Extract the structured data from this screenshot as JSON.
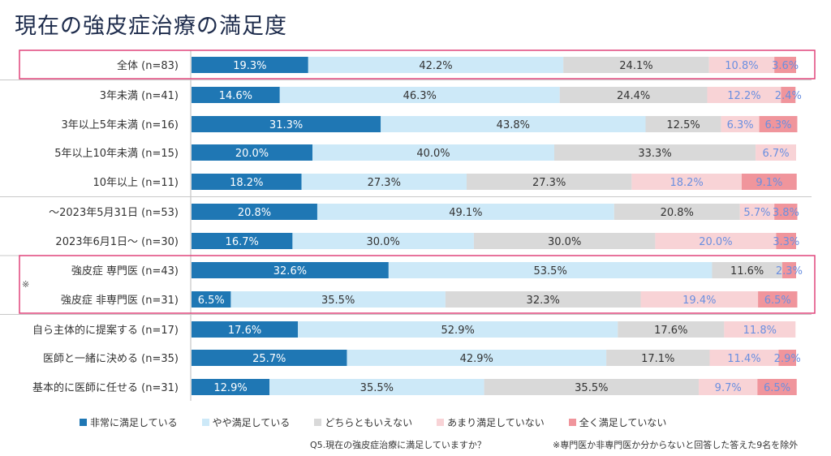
{
  "title": "現在の強皮症治療の満足度",
  "question": "Q5.現在の強皮症治療に満足していますか？",
  "footnote": "※専門医か非専門医か分からないと回答した答えた9名を除外",
  "note_mark": "※",
  "colors": {
    "series": [
      "#1f77b4",
      "#cde9f8",
      "#d9d9d9",
      "#f8d3d6",
      "#f0959c"
    ],
    "highlight_box": "#e0457b",
    "separator": "#c8c8c8",
    "label_dark": "#333333",
    "label_blue": "#6a8fe0",
    "label_white": "#ffffff"
  },
  "chart_data": {
    "type": "bar",
    "orientation": "horizontal",
    "stacked": true,
    "percent": true,
    "xlim": [
      0,
      100
    ],
    "categories": [
      "全体 (n=83)",
      "3年未満 (n=41)",
      "3年以上5年未満 (n=16)",
      "5年以上10年未満 (n=15)",
      "10年以上 (n=11)",
      "～2023年5月31日 (n=53)",
      "2023年6月1日～ (n=30)",
      "強皮症 専門医 (n=43)",
      "強皮症 非専門医 (n=31)",
      "自ら主体的に提案する (n=17)",
      "医師と一緒に決める (n=35)",
      "基本的に医師に任せる (n=31)"
    ],
    "series": [
      {
        "name": "非常に満足している",
        "values": [
          19.3,
          14.6,
          31.3,
          20.0,
          18.2,
          20.8,
          16.7,
          32.6,
          6.5,
          17.6,
          25.7,
          12.9
        ]
      },
      {
        "name": "やや満足している",
        "values": [
          42.2,
          46.3,
          43.8,
          40.0,
          27.3,
          49.1,
          30.0,
          53.5,
          35.5,
          52.9,
          42.9,
          35.5
        ]
      },
      {
        "name": "どちらともいえない",
        "values": [
          24.1,
          24.4,
          12.5,
          33.3,
          27.3,
          20.8,
          30.0,
          11.6,
          32.3,
          17.6,
          17.1,
          35.5
        ]
      },
      {
        "name": "あまり満足していない",
        "values": [
          10.8,
          12.2,
          6.3,
          6.7,
          18.2,
          5.7,
          20.0,
          0,
          19.4,
          11.8,
          11.4,
          9.7
        ]
      },
      {
        "name": "全く満足していない",
        "values": [
          3.6,
          2.4,
          6.3,
          0,
          9.1,
          3.8,
          3.3,
          2.3,
          6.5,
          0,
          2.9,
          6.5
        ]
      }
    ],
    "legend_position": "bottom",
    "highlight_groups": [
      [
        0
      ],
      [
        7,
        8
      ]
    ],
    "group_separators_after": [
      0,
      4,
      6,
      8
    ]
  }
}
